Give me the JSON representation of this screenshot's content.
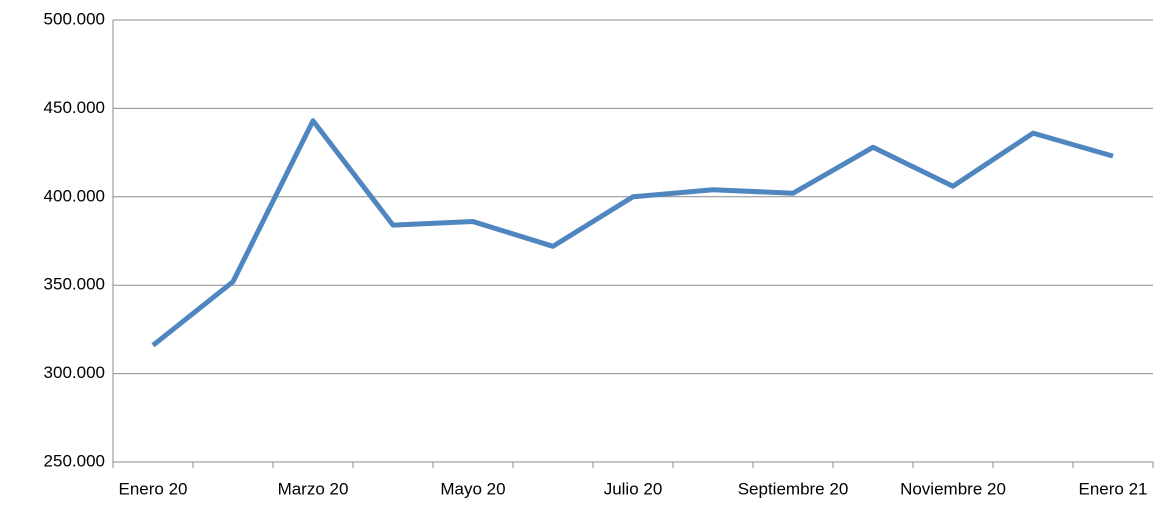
{
  "chart_data": {
    "type": "line",
    "categories": [
      "Enero 20",
      null,
      "Marzo 20",
      null,
      "Mayo 20",
      null,
      "Julio 20",
      null,
      "Septiembre 20",
      null,
      "Noviembre 20",
      null,
      "Enero 21"
    ],
    "series": [
      {
        "name": null,
        "color": "#4f86c0",
        "values": [
          316000,
          352000,
          443000,
          384000,
          386000,
          372000,
          400000,
          404000,
          402000,
          428000,
          406000,
          436000,
          423000
        ]
      }
    ],
    "ylim": [
      250000,
      500000
    ],
    "yticks": [
      {
        "value": 250000,
        "label": "250.000"
      },
      {
        "value": 300000,
        "label": "300.000"
      },
      {
        "value": 350000,
        "label": "350.000"
      },
      {
        "value": 400000,
        "label": "400.000"
      },
      {
        "value": 450000,
        "label": "450.000"
      },
      {
        "value": 500000,
        "label": "500.000"
      }
    ],
    "grid": true
  }
}
